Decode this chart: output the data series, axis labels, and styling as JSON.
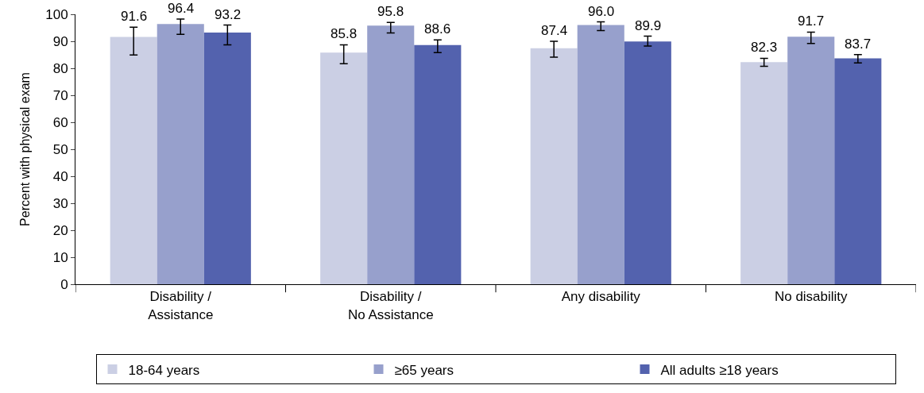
{
  "chart_data": {
    "type": "bar",
    "ylabel": "Percent with physical exam",
    "categories": [
      "Disability /\nAssistance",
      "Disability /\nNo Assistance",
      "Any disability",
      "No disability"
    ],
    "series": [
      {
        "name": "18-64 years",
        "color": "#cbcfe4",
        "values": [
          91.6,
          85.8,
          87.4,
          82.3
        ],
        "value_labels": [
          "91.6",
          "85.8",
          "87.4",
          "82.3"
        ],
        "errors": [
          [
            84.9,
            95.2
          ],
          [
            81.7,
            88.7
          ],
          [
            84.1,
            90.0
          ],
          [
            80.7,
            83.7
          ]
        ]
      },
      {
        "name": "≥65 years",
        "color": "#97a0cc",
        "values": [
          96.4,
          95.8,
          96.0,
          91.7
        ],
        "value_labels": [
          "96.4",
          "95.8",
          "96.0",
          "91.7"
        ],
        "errors": [
          [
            92.6,
            98.2
          ],
          [
            93.1,
            97.0
          ],
          [
            94.0,
            97.2
          ],
          [
            89.2,
            93.4
          ]
        ]
      },
      {
        "name": "All adults ≥18 years",
        "color": "#5362ae",
        "values": [
          93.2,
          88.6,
          89.9,
          83.7
        ],
        "value_labels": [
          "93.2",
          "88.6",
          "89.9",
          "83.7"
        ],
        "errors": [
          [
            88.7,
            96.0
          ],
          [
            85.8,
            90.5
          ],
          [
            88.2,
            91.9
          ],
          [
            82.0,
            85.1
          ]
        ]
      }
    ],
    "ylim": [
      0,
      100
    ],
    "yticks": [
      0,
      10,
      20,
      30,
      40,
      50,
      60,
      70,
      80,
      90,
      100
    ],
    "legend": "bottom"
  }
}
